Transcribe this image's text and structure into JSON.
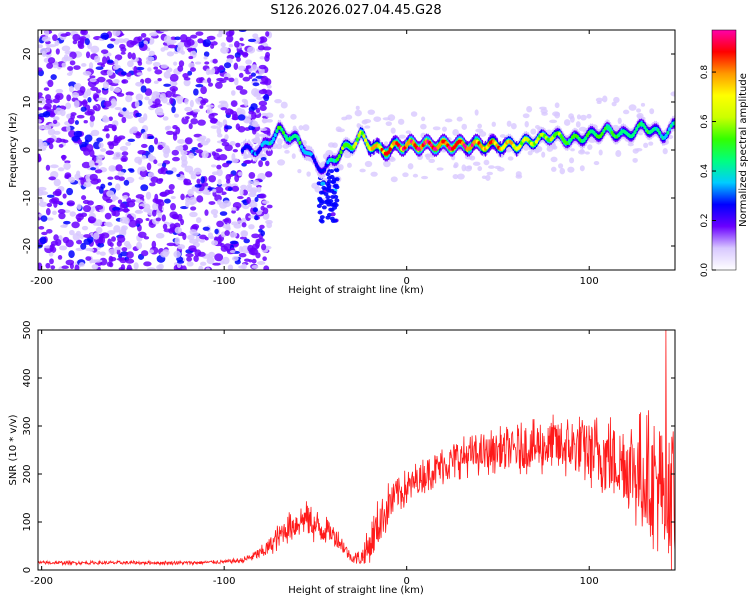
{
  "chart_data": [
    {
      "type": "heatmap",
      "title": "S126.2026.027.04.45.G28",
      "xlabel": "Height of straight line (km)",
      "ylabel": "Frequency (Hz)",
      "xlim": [
        -202,
        147
      ],
      "ylim": [
        -25,
        25
      ],
      "xticks": [
        -200,
        -100,
        0,
        100
      ],
      "yticks": [
        -20,
        -10,
        0,
        10,
        20
      ],
      "colorbar": {
        "label": "Normalized spectral amplitude",
        "range": [
          0.0,
          0.97
        ],
        "ticks": [
          0.0,
          0.2,
          0.4,
          0.6,
          0.8
        ],
        "colors": [
          "#ffffff",
          "#d8c8ff",
          "#6a00ff",
          "#0000ff",
          "#00ccff",
          "#00ff80",
          "#33ff00",
          "#ccff00",
          "#ffff00",
          "#ff9900",
          "#ff0000",
          "#ff00aa"
        ]
      },
      "ridge": {
        "x": [
          -90,
          -80,
          -70,
          -60,
          -55,
          -50,
          -45,
          -40,
          -35,
          -30,
          -25,
          -20,
          -15,
          -10,
          -5,
          0,
          10,
          20,
          30,
          40,
          50,
          60,
          70,
          80,
          90,
          100,
          110,
          120,
          130,
          140,
          147
        ],
        "freq": [
          0,
          0,
          4,
          2,
          0,
          -3,
          -4,
          -2,
          0,
          1,
          3,
          1,
          0,
          0,
          1,
          1,
          1,
          1,
          1,
          1,
          1,
          1,
          2,
          3,
          2,
          3,
          4,
          3,
          5,
          3,
          5
        ],
        "amplitude": [
          0.25,
          0.3,
          0.45,
          0.5,
          0.35,
          0.25,
          0.3,
          0.4,
          0.55,
          0.6,
          0.65,
          0.7,
          0.75,
          0.8,
          0.85,
          0.9,
          0.9,
          0.92,
          0.9,
          0.85,
          0.75,
          0.65,
          0.6,
          0.55,
          0.5,
          0.45,
          0.5,
          0.45,
          0.45,
          0.4,
          0.4
        ]
      },
      "noise_region": {
        "x_range": [
          -202,
          -85
        ],
        "freq_range": [
          -25,
          25
        ],
        "amplitude": 0.1
      },
      "spur": {
        "x_range": [
          -48,
          -38
        ],
        "freq_range": [
          -15,
          -4
        ]
      }
    },
    {
      "type": "line",
      "xlabel": "Height of straight line (km)",
      "ylabel": "SNR (10 * v/v)",
      "xlim": [
        -202,
        147
      ],
      "ylim": [
        0,
        500
      ],
      "xticks": [
        -200,
        -100,
        0,
        100
      ],
      "yticks": [
        0,
        100,
        200,
        300,
        400,
        500
      ],
      "color": "#ff1a1a",
      "series": [
        {
          "name": "SNR",
          "x": [
            -202,
            -180,
            -160,
            -140,
            -120,
            -100,
            -90,
            -80,
            -75,
            -70,
            -65,
            -60,
            -55,
            -50,
            -45,
            -40,
            -35,
            -30,
            -25,
            -20,
            -15,
            -10,
            -5,
            0,
            5,
            10,
            20,
            30,
            40,
            50,
            60,
            70,
            80,
            90,
            100,
            110,
            120,
            130,
            140,
            147
          ],
          "mean": [
            15,
            15,
            15,
            15,
            15,
            17,
            20,
            35,
            50,
            70,
            90,
            100,
            110,
            90,
            85,
            75,
            50,
            25,
            25,
            50,
            100,
            135,
            160,
            170,
            185,
            200,
            220,
            235,
            240,
            250,
            250,
            255,
            260,
            255,
            250,
            240,
            220,
            200,
            180,
            160
          ],
          "spread": [
            4,
            4,
            4,
            4,
            4,
            4,
            6,
            15,
            20,
            30,
            35,
            35,
            35,
            40,
            30,
            25,
            20,
            10,
            20,
            50,
            60,
            50,
            45,
            40,
            40,
            40,
            45,
            45,
            45,
            50,
            55,
            60,
            65,
            70,
            80,
            90,
            110,
            140,
            160,
            180
          ],
          "peak": 500
        }
      ]
    }
  ]
}
